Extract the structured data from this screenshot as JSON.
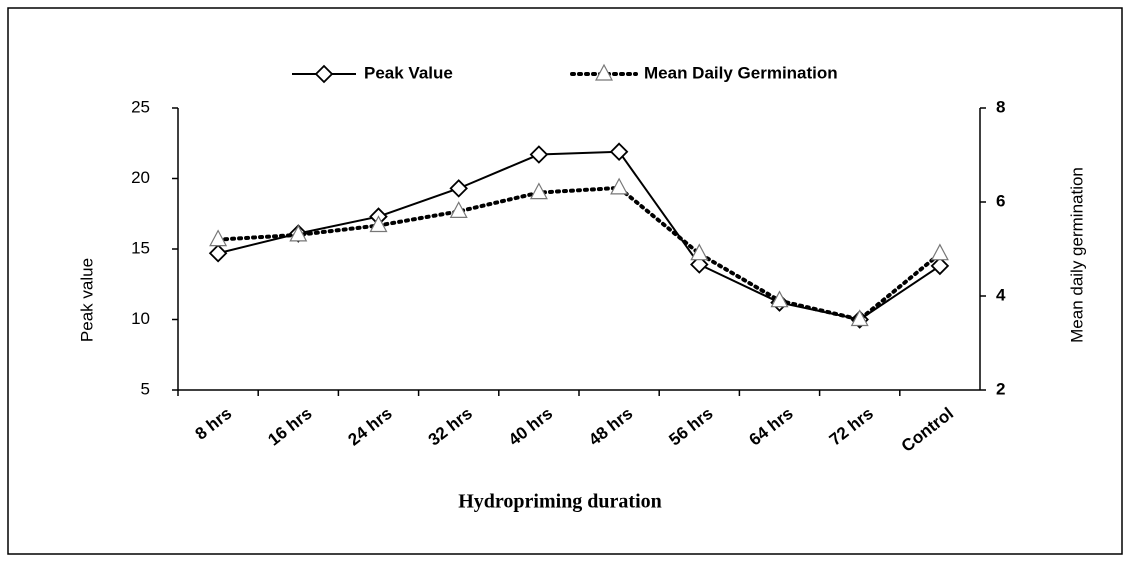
{
  "chart_data": {
    "type": "line",
    "x_label": "Hydropriming duration",
    "y_label": "Peak value",
    "y2_label": "Mean daily germination",
    "categories": [
      "8 hrs",
      "16 hrs",
      "24 hrs",
      "32 hrs",
      "40 hrs",
      "48 hrs",
      "56 hrs",
      "64 hrs",
      "72 hrs",
      "Control"
    ],
    "series": [
      {
        "name": "Peak Value",
        "color": "#000000",
        "line_style": "solid",
        "marker": "diamond",
        "values": [
          14.7,
          16.1,
          17.3,
          19.3,
          21.7,
          21.9,
          13.9,
          11.2,
          10.0,
          13.8
        ]
      },
      {
        "name": "Mean Daily Germination",
        "color": "#000000",
        "line_style": "dotted",
        "marker": "triangle",
        "axis": "y2",
        "values": [
          5.2,
          5.3,
          5.5,
          5.8,
          6.2,
          6.3,
          4.9,
          3.9,
          3.5,
          4.9
        ]
      }
    ],
    "ylim": [
      5,
      25
    ],
    "yticks": [
      5,
      10,
      15,
      20,
      25
    ],
    "y2lim": [
      2,
      8
    ],
    "y2ticks": [
      2,
      4,
      6,
      8
    ],
    "grid": false,
    "legend": "top"
  }
}
